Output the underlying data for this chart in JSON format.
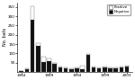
{
  "years": [
    1984,
    1985,
    1986,
    1987,
    1988,
    1989,
    1990,
    1991,
    1992,
    1993,
    1994,
    1995,
    1996,
    1997,
    1998,
    1999,
    2000,
    2001,
    2002,
    2003
  ],
  "negative": [
    5,
    15,
    280,
    140,
    55,
    60,
    45,
    25,
    20,
    15,
    18,
    15,
    90,
    25,
    20,
    25,
    20,
    20,
    25,
    30
  ],
  "positive": [
    0,
    2,
    75,
    15,
    25,
    10,
    5,
    5,
    5,
    2,
    5,
    20,
    5,
    3,
    5,
    3,
    3,
    3,
    3,
    5
  ],
  "ylabel": "No. bats",
  "xticks": [
    1984,
    1989,
    1994,
    1999,
    2003
  ],
  "ylim": [
    0,
    375
  ],
  "yticks": [
    50,
    100,
    150,
    200,
    250,
    300,
    350
  ],
  "legend_labels": [
    "Positive",
    "Negative"
  ],
  "legend_colors": [
    "white",
    "black"
  ],
  "bar_color_negative": "#111111",
  "bar_color_positive": "#ffffff",
  "background_color": "#ffffff",
  "edge_color": "#555555"
}
